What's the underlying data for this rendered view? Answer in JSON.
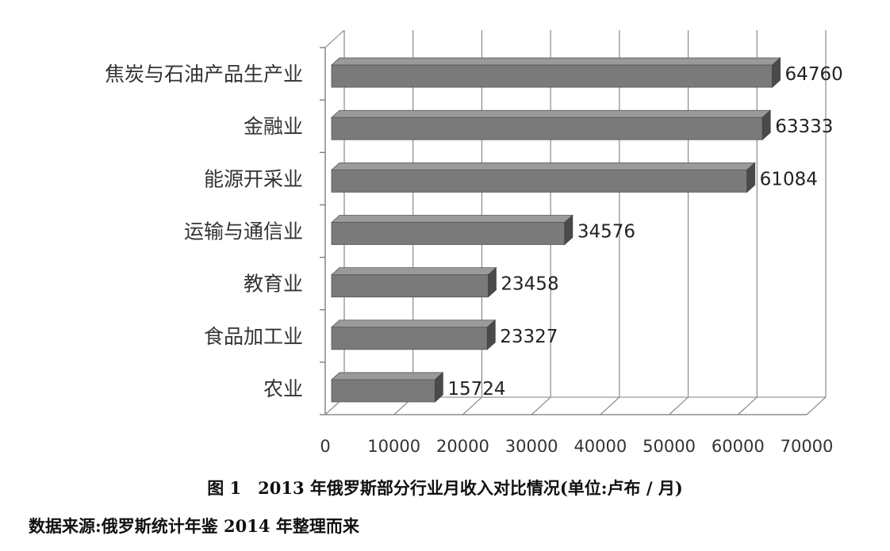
{
  "chart_data": {
    "type": "bar",
    "orientation": "horizontal",
    "style": "3d",
    "categories": [
      "焦炭与石油产品生产业",
      "金融业",
      "能源开采业",
      "运输与通信业",
      "教育业",
      "食品加工业",
      "农业"
    ],
    "values": [
      64760,
      63333,
      61084,
      34576,
      23458,
      23327,
      15724
    ],
    "data_labels": [
      "64760",
      "63333",
      "61084",
      "34576",
      "23458",
      "23327",
      "15724"
    ],
    "xlim": [
      0,
      70000
    ],
    "x_ticks": [
      "0",
      "10000",
      "20000",
      "30000",
      "40000",
      "50000",
      "60000",
      "70000"
    ],
    "grid": true,
    "bar_color": "#7a7a7a"
  },
  "caption": "图 1　2013 年俄罗斯部分行业月收入对比情况(单位:卢布 / 月)",
  "source_note": "数据来源:俄罗斯统计年鉴 2014 年整理而来"
}
